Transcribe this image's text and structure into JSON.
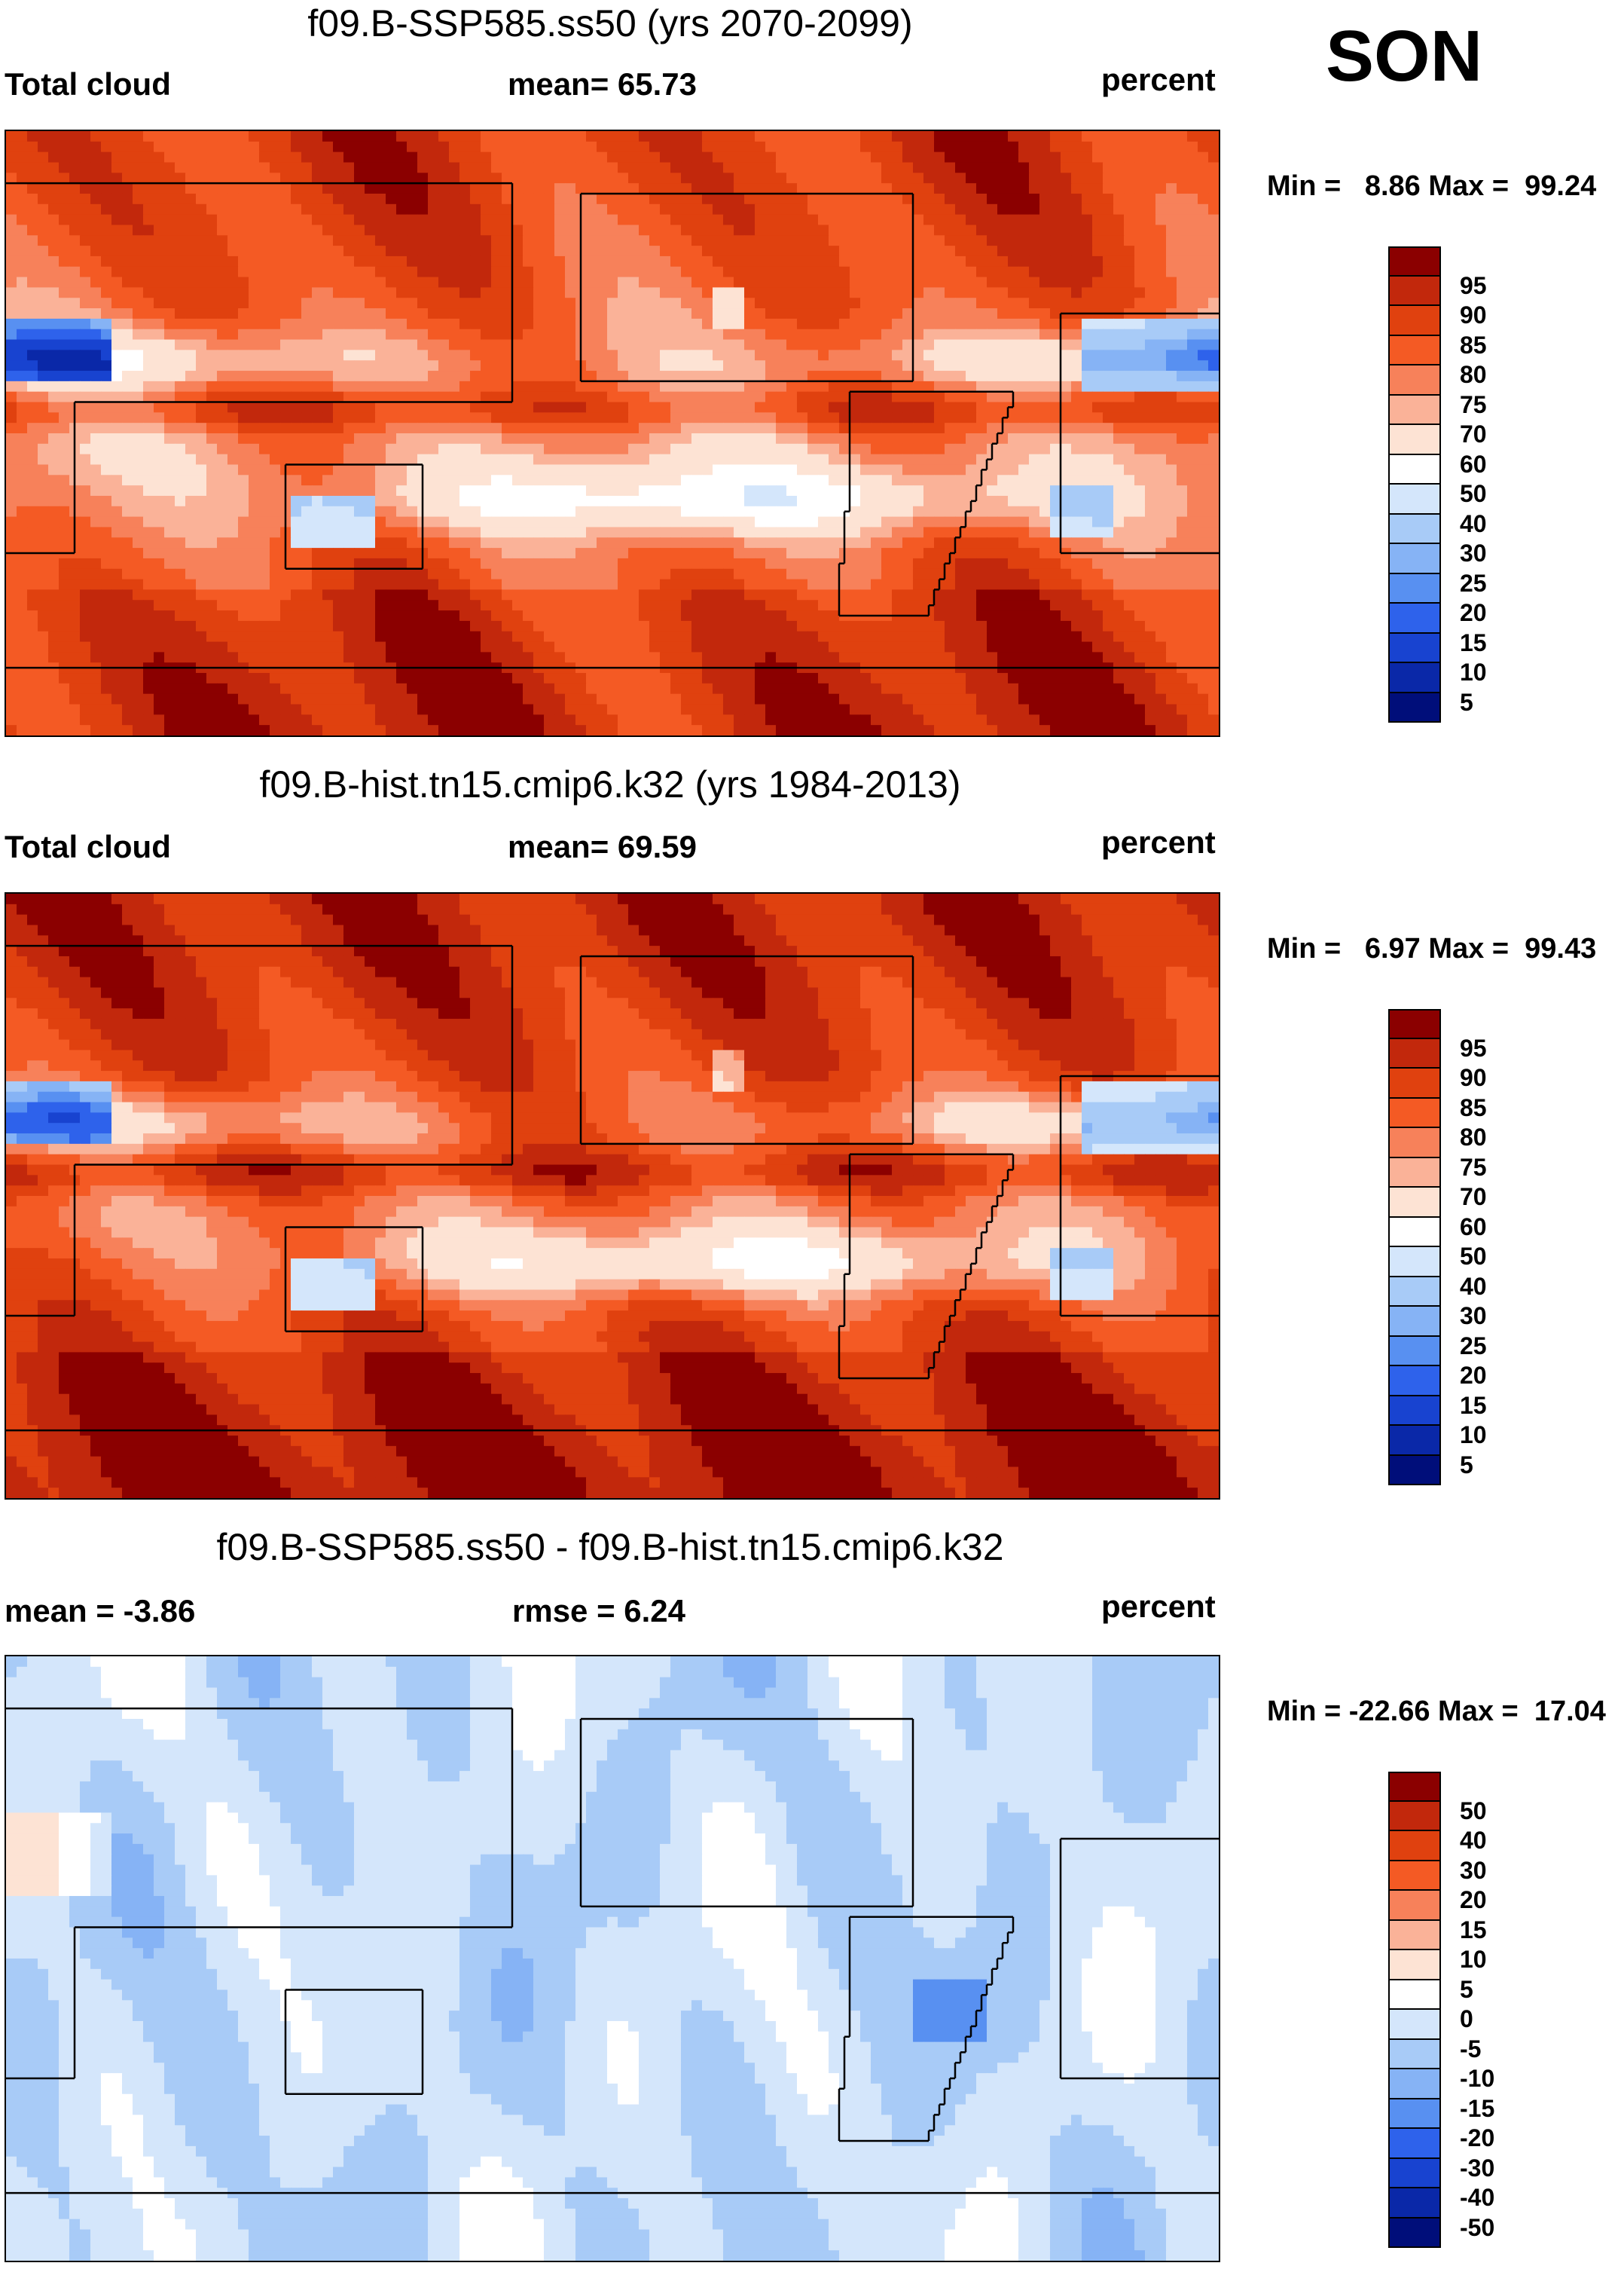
{
  "season": "SON",
  "units_label": "percent",
  "chart_data": [
    {
      "type": "heatmap",
      "title": "f09.B-SSP585.ss50 (yrs 2070-2099)",
      "left_label": "Total cloud",
      "center_label": "mean=  65.73",
      "right_label": "percent",
      "minmax": "Min =   8.86 Max =  99.24",
      "mean": 65.73,
      "min": 8.86,
      "max": 99.24,
      "field_variant": "future",
      "colorbar": {
        "labels": [
          "95",
          "90",
          "85",
          "80",
          "75",
          "70",
          "60",
          "50",
          "40",
          "30",
          "25",
          "20",
          "15",
          "10",
          "5"
        ],
        "colors": [
          "#8b0000",
          "#c2280c",
          "#e0410f",
          "#f45a24",
          "#f7815a",
          "#fab298",
          "#fde3d4",
          "#ffffff",
          "#d4e6fb",
          "#a8cbf7",
          "#86b3f5",
          "#5890f1",
          "#2e62eb",
          "#1843d0",
          "#0a28a8",
          "#000e7a"
        ]
      }
    },
    {
      "type": "heatmap",
      "title": "f09.B-hist.tn15.cmip6.k32 (yrs 1984-2013)",
      "left_label": "Total cloud",
      "center_label": "mean=  69.59",
      "right_label": "percent",
      "minmax": "Min =   6.97 Max =  99.43",
      "mean": 69.59,
      "min": 6.97,
      "max": 99.43,
      "field_variant": "hist",
      "colorbar": {
        "labels": [
          "95",
          "90",
          "85",
          "80",
          "75",
          "70",
          "60",
          "50",
          "40",
          "30",
          "25",
          "20",
          "15",
          "10",
          "5"
        ],
        "colors": [
          "#8b0000",
          "#c2280c",
          "#e0410f",
          "#f45a24",
          "#f7815a",
          "#fab298",
          "#fde3d4",
          "#ffffff",
          "#d4e6fb",
          "#a8cbf7",
          "#86b3f5",
          "#5890f1",
          "#2e62eb",
          "#1843d0",
          "#0a28a8",
          "#000e7a"
        ]
      }
    },
    {
      "type": "heatmap",
      "title": "f09.B-SSP585.ss50 - f09.B-hist.tn15.cmip6.k32",
      "left_label": "mean =  -3.86",
      "center_label": "rmse =    6.24",
      "right_label": "percent",
      "minmax": "Min = -22.66 Max =  17.04",
      "mean": -3.86,
      "rmse": 6.24,
      "min": -22.66,
      "max": 17.04,
      "field_variant": "diff",
      "colorbar": {
        "labels": [
          "50",
          "40",
          "30",
          "20",
          "15",
          "10",
          "5",
          "0",
          "-5",
          "-10",
          "-15",
          "-20",
          "-30",
          "-40",
          "-50"
        ],
        "colors": [
          "#8b0000",
          "#c2280c",
          "#e0410f",
          "#f45a24",
          "#f7815a",
          "#fab298",
          "#fde3d4",
          "#ffffff",
          "#d4e6fb",
          "#a8cbf7",
          "#86b3f5",
          "#5890f1",
          "#2e62eb",
          "#1843d0",
          "#0a28a8",
          "#000e7a"
        ]
      }
    }
  ]
}
